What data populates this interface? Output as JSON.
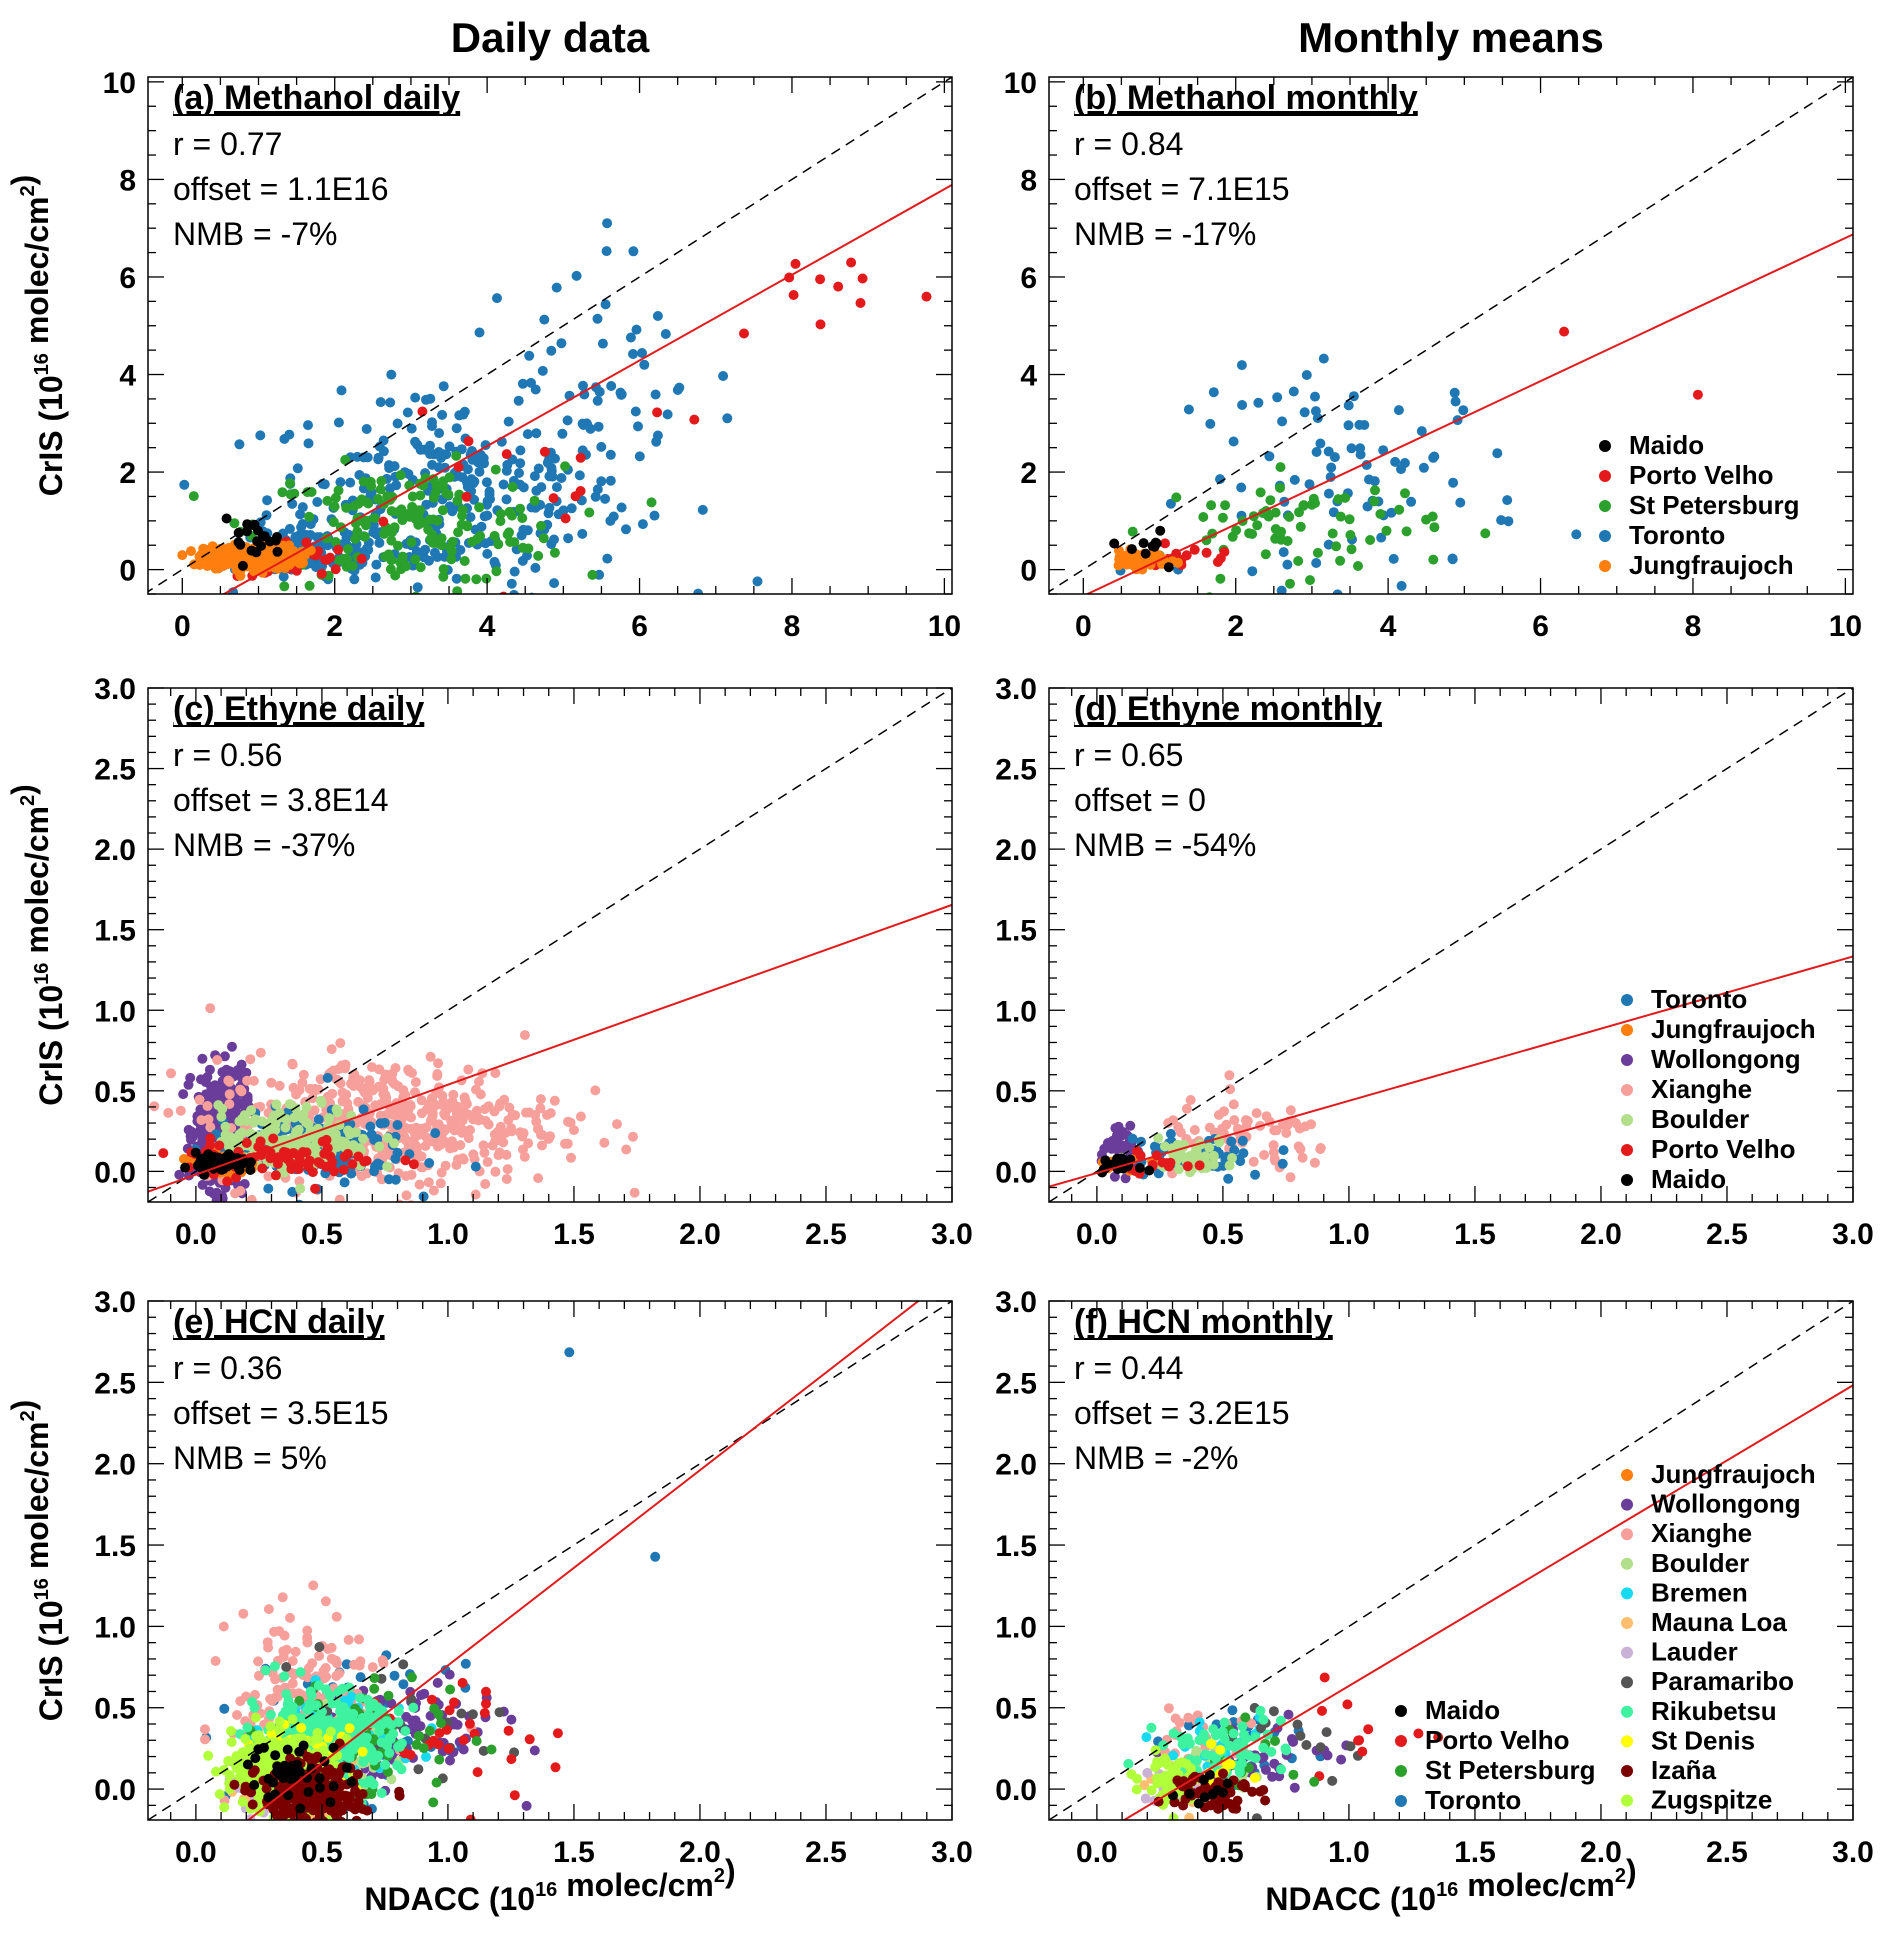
{
  "column_titles": [
    "Daily data",
    "Monthly means"
  ],
  "y_axis_label": {
    "main": "CrIS (10",
    "sup": "16",
    "rest": " molec/cm",
    "sup2": "2",
    "end": ")"
  },
  "x_axis_label": {
    "main": "NDACC (10",
    "sup": "16",
    "rest": " molec/cm",
    "sup2": "2",
    "end": ")"
  },
  "colors": {
    "Maido": "#000000",
    "Porto Velho": "#e31a1c",
    "St Petersburg": "#2ca02c",
    "Toronto": "#1f77b4",
    "Jungfraujoch": "#ff7f0e",
    "Wollongong": "#6a3d9a",
    "Xianghe": "#f7a09b",
    "Boulder": "#b2df8a",
    "Bremen": "#17d9f0",
    "Mauna Loa": "#fdbf6f",
    "Lauder": "#cab2d6",
    "Paramaribo": "#555555",
    "Rikubetsu": "#3ef2a0",
    "St Denis": "#ffff00",
    "Izaña": "#7a0000",
    "Zugspitze": "#b0ff3a",
    "fit_line": "#e31a1c",
    "one_to_one": "#000000"
  },
  "chart_data": [
    {
      "id": "a",
      "type": "scatter",
      "title": "(a) Methanol daily",
      "stats": [
        "r = 0.77",
        "offset = 1.1E16",
        "NMB = -7%"
      ],
      "xlim": [
        -0.45,
        10.1
      ],
      "ylim": [
        -0.5,
        10.1
      ],
      "xticks": [
        0,
        2,
        4,
        6,
        8,
        10
      ],
      "yticks": [
        0,
        2,
        4,
        6,
        8,
        10
      ],
      "tick_labels_x": [
        "0",
        "2",
        "4",
        "6",
        "8",
        "10"
      ],
      "tick_labels_y": [
        "0",
        "2",
        "4",
        "6",
        "8",
        "10"
      ],
      "minor": 0.5,
      "fit": {
        "slope": 0.878,
        "intercept": -0.98
      },
      "legend": [],
      "clusters": [
        [
          "Toronto",
          3.5,
          1.5,
          1.2,
          1.0,
          300
        ],
        [
          "Toronto",
          5.3,
          3.6,
          1.0,
          1.5,
          60
        ],
        [
          "Toronto",
          1.8,
          0.3,
          0.5,
          0.3,
          100
        ],
        [
          "St Petersburg",
          3.0,
          0.9,
          1.0,
          0.6,
          180
        ],
        [
          "Porto Velho",
          8.5,
          5.8,
          0.8,
          0.6,
          12
        ],
        [
          "Porto Velho",
          4.5,
          2.3,
          1.5,
          1.0,
          15
        ],
        [
          "Porto Velho",
          1.4,
          0.2,
          0.4,
          0.2,
          40
        ],
        [
          "Jungfraujoch",
          0.9,
          0.25,
          0.3,
          0.12,
          300
        ],
        [
          "Maido",
          0.9,
          0.6,
          0.2,
          0.2,
          20
        ]
      ]
    },
    {
      "id": "b",
      "type": "scatter",
      "title": "(b) Methanol monthly",
      "stats": [
        "r = 0.84",
        "offset = 7.1E15",
        "NMB = -17%"
      ],
      "xlim": [
        -0.45,
        10.1
      ],
      "ylim": [
        -0.5,
        10.1
      ],
      "xticks": [
        0,
        2,
        4,
        6,
        8,
        10
      ],
      "yticks": [
        0,
        2,
        4,
        6,
        8,
        10
      ],
      "tick_labels_x": [
        "0",
        "2",
        "4",
        "6",
        "8",
        "10"
      ],
      "tick_labels_y": [
        "0",
        "2",
        "4",
        "6",
        "8",
        "10"
      ],
      "minor": 0.5,
      "fit": {
        "slope": 0.734,
        "intercept": -0.54
      },
      "legend": [
        "Maido",
        "Porto Velho",
        "St Petersburg",
        "Toronto",
        "Jungfraujoch"
      ],
      "clusters": [
        [
          "Toronto",
          3.6,
          1.9,
          1.1,
          1.1,
          90
        ],
        [
          "St Petersburg",
          2.8,
          0.9,
          0.9,
          0.5,
          70
        ],
        [
          "Porto Velho",
          1.4,
          0.2,
          0.3,
          0.15,
          15
        ],
        [
          "Porto Velho",
          6.6,
          4.4,
          1.0,
          0.5,
          2
        ],
        [
          "Jungfraujoch",
          0.7,
          0.2,
          0.2,
          0.08,
          60
        ],
        [
          "Maido",
          0.9,
          0.55,
          0.2,
          0.2,
          10
        ]
      ]
    },
    {
      "id": "c",
      "type": "scatter",
      "title": "(c) Ethyne daily",
      "stats": [
        "r = 0.56",
        "offset = 3.8E14",
        "NMB = -37%"
      ],
      "xlim": [
        -0.19,
        3.0
      ],
      "ylim": [
        -0.19,
        3.0
      ],
      "xticks": [
        0,
        0.5,
        1,
        1.5,
        2,
        2.5,
        3
      ],
      "yticks": [
        0,
        0.5,
        1,
        1.5,
        2,
        2.5,
        3
      ],
      "tick_labels_x": [
        "0.0",
        "0.5",
        "1.0",
        "1.5",
        "2.0",
        "2.5",
        "3.0"
      ],
      "tick_labels_y": [
        "0.0",
        "0.5",
        "1.0",
        "1.5",
        "2.0",
        "2.5",
        "3.0"
      ],
      "minor": 0.1,
      "fit": {
        "slope": 0.558,
        "intercept": -0.02
      },
      "legend": [],
      "clusters": [
        [
          "Wollongong",
          0.1,
          0.25,
          0.05,
          0.18,
          400
        ],
        [
          "Xianghe",
          0.75,
          0.3,
          0.35,
          0.2,
          500
        ],
        [
          "Toronto",
          0.45,
          0.15,
          0.2,
          0.12,
          150
        ],
        [
          "Boulder",
          0.4,
          0.2,
          0.15,
          0.1,
          200
        ],
        [
          "Jungfraujoch",
          0.1,
          0.05,
          0.05,
          0.03,
          100
        ],
        [
          "Porto Velho",
          0.35,
          0.08,
          0.2,
          0.06,
          80
        ],
        [
          "Maido",
          0.1,
          0.05,
          0.05,
          0.03,
          80
        ]
      ]
    },
    {
      "id": "d",
      "type": "scatter",
      "title": "(d) Ethyne monthly",
      "stats": [
        "r = 0.65",
        "offset = 0",
        "NMB = -54%"
      ],
      "xlim": [
        -0.19,
        3.0
      ],
      "ylim": [
        -0.19,
        3.0
      ],
      "xticks": [
        0,
        0.5,
        1,
        1.5,
        2,
        2.5,
        3
      ],
      "yticks": [
        0,
        0.5,
        1,
        1.5,
        2,
        2.5,
        3
      ],
      "tick_labels_x": [
        "0.0",
        "0.5",
        "1.0",
        "1.5",
        "2.0",
        "2.5",
        "3.0"
      ],
      "tick_labels_y": [
        "0.0",
        "0.5",
        "1.0",
        "1.5",
        "2.0",
        "2.5",
        "3.0"
      ],
      "minor": 0.1,
      "fit": {
        "slope": 0.448,
        "intercept": -0.01
      },
      "legend": [
        "Toronto",
        "Jungfraujoch",
        "Wollongong",
        "Xianghe",
        "Boulder",
        "Porto Velho",
        "Maido"
      ],
      "clusters": [
        [
          "Wollongong",
          0.1,
          0.12,
          0.04,
          0.06,
          50
        ],
        [
          "Xianghe",
          0.6,
          0.2,
          0.18,
          0.12,
          70
        ],
        [
          "Toronto",
          0.4,
          0.1,
          0.15,
          0.08,
          50
        ],
        [
          "Boulder",
          0.35,
          0.1,
          0.1,
          0.05,
          50
        ],
        [
          "Jungfraujoch",
          0.1,
          0.05,
          0.04,
          0.02,
          20
        ],
        [
          "Porto Velho",
          0.2,
          0.05,
          0.08,
          0.03,
          15
        ],
        [
          "Maido",
          0.08,
          0.04,
          0.04,
          0.02,
          20
        ]
      ]
    },
    {
      "id": "e",
      "type": "scatter",
      "title": "(e) HCN daily",
      "stats": [
        "r = 0.36",
        "offset = 3.5E15",
        "NMB = 5%"
      ],
      "xlim": [
        -0.19,
        3.0
      ],
      "ylim": [
        -0.19,
        3.0
      ],
      "xticks": [
        0,
        0.5,
        1,
        1.5,
        2,
        2.5,
        3
      ],
      "yticks": [
        0,
        0.5,
        1,
        1.5,
        2,
        2.5,
        3
      ],
      "tick_labels_x": [
        "0.0",
        "0.5",
        "1.0",
        "1.5",
        "2.0",
        "2.5",
        "3.0"
      ],
      "tick_labels_y": [
        "0.0",
        "0.5",
        "1.0",
        "1.5",
        "2.0",
        "2.5",
        "3.0"
      ],
      "minor": 0.1,
      "fit": {
        "slope": 1.2,
        "intercept": -0.44
      },
      "legend": [],
      "clusters": [
        [
          "Toronto",
          0.6,
          0.35,
          0.2,
          0.2,
          100
        ],
        [
          "Toronto",
          1.6,
          1.8,
          0.25,
          0.6,
          3
        ],
        [
          "Wollongong",
          0.8,
          0.35,
          0.2,
          0.15,
          100
        ],
        [
          "Xianghe",
          0.45,
          0.6,
          0.15,
          0.25,
          150
        ],
        [
          "Boulder",
          0.5,
          0.2,
          0.12,
          0.12,
          100
        ],
        [
          "Bremen",
          0.55,
          0.3,
          0.15,
          0.15,
          60
        ],
        [
          "Mauna Loa",
          0.4,
          0.05,
          0.1,
          0.1,
          100
        ],
        [
          "Lauder",
          0.35,
          0.05,
          0.1,
          0.1,
          150
        ],
        [
          "Paramaribo",
          0.7,
          0.4,
          0.25,
          0.2,
          40
        ],
        [
          "Porto Velho",
          1.05,
          0.4,
          0.2,
          0.2,
          30
        ],
        [
          "St Petersburg",
          0.7,
          0.3,
          0.2,
          0.2,
          60
        ],
        [
          "Rikubetsu",
          0.5,
          0.3,
          0.15,
          0.15,
          300
        ],
        [
          "St Denis",
          0.45,
          0.2,
          0.1,
          0.1,
          40
        ],
        [
          "Zugspitze",
          0.35,
          0.1,
          0.1,
          0.12,
          400
        ],
        [
          "Izaña",
          0.45,
          -0.05,
          0.1,
          0.1,
          300
        ],
        [
          "Maido",
          0.4,
          0.1,
          0.1,
          0.1,
          40
        ]
      ]
    },
    {
      "id": "f",
      "type": "scatter",
      "title": "(f) HCN monthly",
      "stats": [
        "r = 0.44",
        "offset = 3.2E15",
        "NMB = -2%"
      ],
      "xlim": [
        -0.19,
        3.0
      ],
      "ylim": [
        -0.19,
        3.0
      ],
      "xticks": [
        0,
        0.5,
        1,
        1.5,
        2,
        2.5,
        3
      ],
      "yticks": [
        0,
        0.5,
        1,
        1.5,
        2,
        2.5,
        3
      ],
      "tick_labels_x": [
        "0.0",
        "0.5",
        "1.0",
        "1.5",
        "2.0",
        "2.5",
        "3.0"
      ],
      "tick_labels_y": [
        "0.0",
        "0.5",
        "1.0",
        "1.5",
        "2.0",
        "2.5",
        "3.0"
      ],
      "minor": 0.1,
      "fit": {
        "slope": 0.924,
        "intercept": -0.29
      },
      "legend": [
        "Jungfraujoch",
        "Wollongong",
        "Xianghe",
        "Boulder",
        "Bremen",
        "Mauna Loa",
        "Lauder",
        "Paramaribo",
        "Rikubetsu",
        "St Denis",
        "Izaña",
        "Zugspitze"
      ],
      "legend2": [
        "Maido",
        "Porto Velho",
        "St Petersburg",
        "Toronto"
      ],
      "clusters": [
        [
          "Toronto",
          0.55,
          0.25,
          0.15,
          0.15,
          30
        ],
        [
          "Wollongong",
          0.7,
          0.2,
          0.15,
          0.1,
          30
        ],
        [
          "Xianghe",
          0.45,
          0.35,
          0.1,
          0.12,
          30
        ],
        [
          "Boulder",
          0.45,
          0.1,
          0.1,
          0.08,
          30
        ],
        [
          "Bremen",
          0.5,
          0.2,
          0.1,
          0.1,
          20
        ],
        [
          "Mauna Loa",
          0.4,
          0.0,
          0.1,
          0.06,
          30
        ],
        [
          "Lauder",
          0.35,
          0.0,
          0.08,
          0.06,
          30
        ],
        [
          "Paramaribo",
          0.8,
          0.3,
          0.2,
          0.2,
          15
        ],
        [
          "Porto Velho",
          1.0,
          0.3,
          0.2,
          0.15,
          10
        ],
        [
          "St Petersburg",
          0.6,
          0.2,
          0.15,
          0.1,
          15
        ],
        [
          "Rikubetsu",
          0.5,
          0.25,
          0.12,
          0.1,
          60
        ],
        [
          "St Denis",
          0.45,
          0.15,
          0.08,
          0.08,
          10
        ],
        [
          "Zugspitze",
          0.3,
          0.05,
          0.06,
          0.08,
          60
        ],
        [
          "Izaña",
          0.45,
          0.0,
          0.08,
          0.06,
          60
        ],
        [
          "Maido",
          0.4,
          0.0,
          0.08,
          0.06,
          10
        ]
      ]
    }
  ]
}
